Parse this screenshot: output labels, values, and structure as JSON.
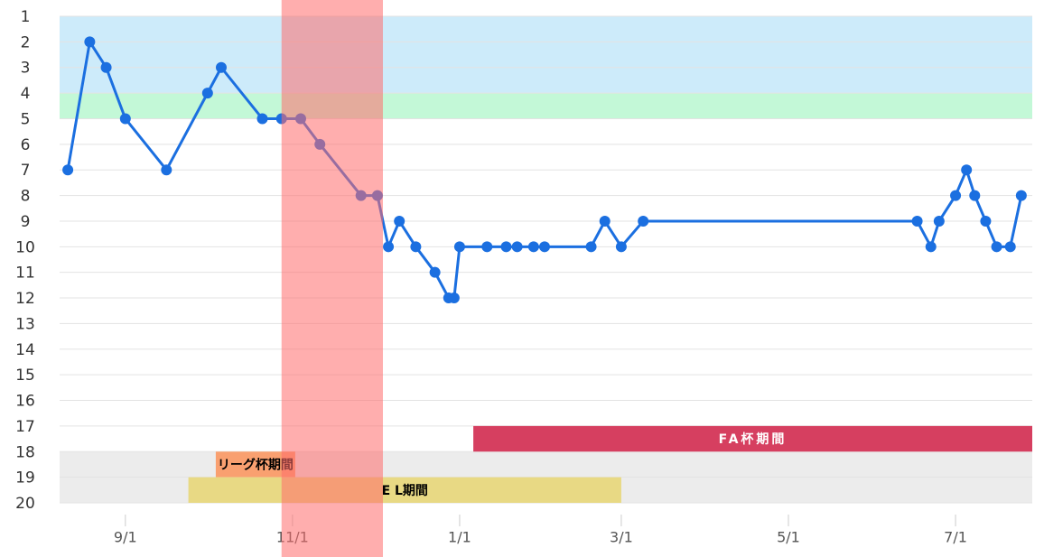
{
  "chart_data": {
    "type": "line",
    "x": [
      "8/11",
      "8/19",
      "8/25",
      "9/1",
      "9/16",
      "10/1",
      "10/6",
      "10/21",
      "10/28",
      "11/4",
      "11/11",
      "11/26",
      "12/2",
      "12/6",
      "12/10",
      "12/16",
      "12/23",
      "12/28",
      "12/30",
      "1/1",
      "1/11",
      "1/18",
      "1/22",
      "1/28",
      "2/1",
      "2/18",
      "2/23",
      "3/1",
      "3/9",
      "6/17",
      "6/22",
      "6/25",
      "7/1",
      "7/5",
      "7/8",
      "7/12",
      "7/16",
      "7/21",
      "7/25"
    ],
    "series": [
      {
        "color": "#1b6fe0",
        "values": [
          7,
          2,
          3,
          5,
          7,
          4,
          3,
          5,
          5,
          5,
          6,
          8,
          8,
          10,
          9,
          10,
          11,
          12,
          12,
          10,
          10,
          10,
          10,
          10,
          10,
          10,
          9,
          10,
          9,
          9,
          10,
          9,
          8,
          7,
          8,
          9,
          10,
          10,
          8
        ]
      }
    ],
    "xlim": [
      "8/8",
      "7/29"
    ],
    "xticks": [
      "9/1",
      "11/1",
      "1/1",
      "3/1",
      "5/1",
      "7/1"
    ],
    "ylim": [
      20,
      1
    ],
    "yticks": [
      1,
      2,
      3,
      4,
      5,
      6,
      7,
      8,
      9,
      10,
      11,
      12,
      13,
      14,
      15,
      16,
      17,
      18,
      19,
      20
    ],
    "grid": true,
    "bands": [
      {
        "from": 1,
        "to": 4,
        "color": "#cdebfa"
      },
      {
        "from": 4,
        "to": 5,
        "color": "#c3f8d7"
      },
      {
        "from": 18,
        "to": 20,
        "color": "#ececec"
      }
    ],
    "periods": [
      {
        "label": "FA杯期間",
        "start": "1/6",
        "end": "7/29",
        "from": 17,
        "to": 18,
        "color": "#d63f60",
        "text_color": "#ffffff"
      },
      {
        "label": "リーグ杯期間",
        "start": "10/4",
        "end": "11/2",
        "from": 18,
        "to": 19,
        "color": "#f9a070",
        "text_color": "#000000"
      },
      {
        "label": "E L期間",
        "start": "9/24",
        "end": "3/1",
        "from": 19,
        "to": 20,
        "color": "#e8d984",
        "text_color": "#000000"
      }
    ],
    "highlight": {
      "start": "10/28",
      "end": "12/4",
      "color": "#ff6b6b"
    }
  }
}
